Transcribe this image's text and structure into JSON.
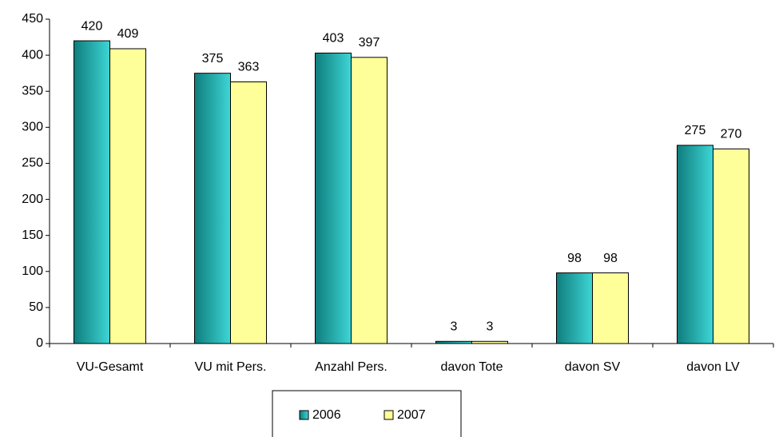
{
  "chart_data": {
    "type": "bar",
    "categories": [
      "VU-Gesamt",
      "VU mit Pers.",
      "Anzahl Pers.",
      "davon Tote",
      "davon SV",
      "davon LV"
    ],
    "series": [
      {
        "name": "2006",
        "color": "#2bbcbc",
        "values": [
          420,
          375,
          403,
          3,
          98,
          275
        ]
      },
      {
        "name": "2007",
        "color": "#ffff99",
        "values": [
          409,
          363,
          397,
          3,
          98,
          270
        ]
      }
    ],
    "ylim": [
      0,
      450
    ],
    "yticks": [
      0,
      50,
      100,
      150,
      200,
      250,
      300,
      350,
      400,
      450
    ],
    "grid": false,
    "legend": "bottom"
  }
}
